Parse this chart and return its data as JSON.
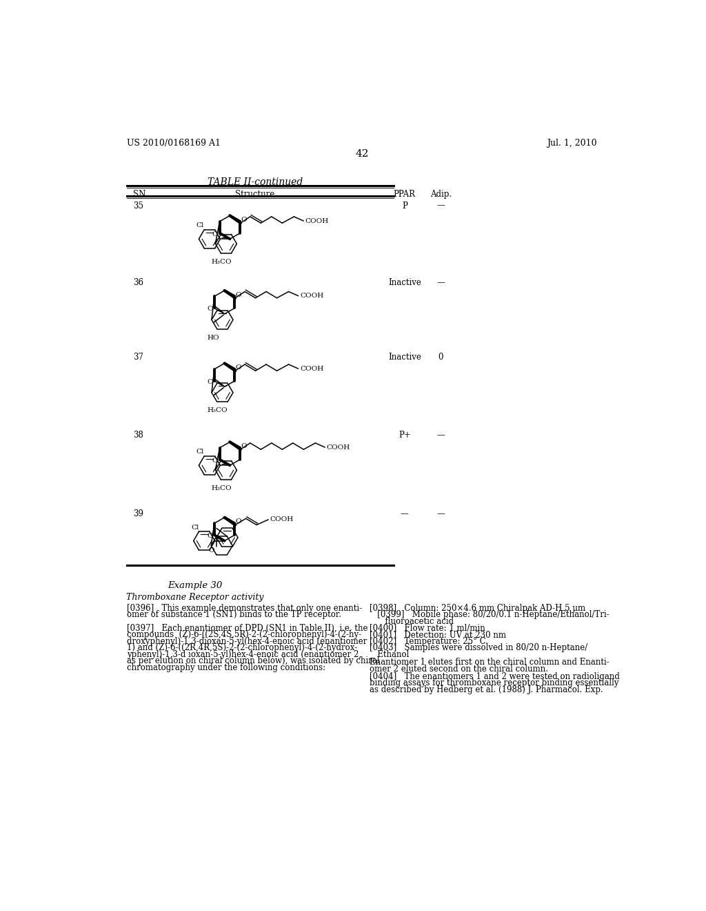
{
  "page_number": "42",
  "patent_number": "US 2010/0168169 A1",
  "patent_date": "Jul. 1, 2010",
  "table_title": "TABLE II-continued",
  "table_headers": [
    "SN",
    "Structure",
    "PPAR",
    "Adip."
  ],
  "rows": [
    {
      "sn": "35",
      "ppar": "P",
      "adip": "—"
    },
    {
      "sn": "36",
      "ppar": "Inactive",
      "adip": "—"
    },
    {
      "sn": "37",
      "ppar": "Inactive",
      "adip": "0"
    },
    {
      "sn": "38",
      "ppar": "P+",
      "adip": "—"
    },
    {
      "sn": "39",
      "ppar": "—",
      "adip": "—"
    }
  ],
  "example_title": "Example 30",
  "example_subtitle": "Thromboxane Receptor activity",
  "p396": "[0396]   This example demonstrates that only one enantiomer of substance 1 (SN1) binds to the TP receptor.",
  "p397_1": "[0397]   Each enantiomer of DPD (SN1 in Table II), i.e. the",
  "p397_2": "compounds  (Z)-6-((2S,4S,5R)-2-(2-chlorophenyl)-4-(2-hy-",
  "p397_3": "droxyphenyl)-1,3-dioxan-5-yl(hex-4-enoic acid (enantiomer",
  "p397_4": "1) and (Z)-6-((2R,4R,5S)-2-(2-chlorophenyl)-4-(2-hydrox-",
  "p397_5": "yphenyl)-1,3-d ioxan-5-yl)hex-4-enoic acid (enantiomer 2,",
  "p397_6": "as per elution on chiral column below), was isolated by chiral",
  "p397_7": "chromatography under the following conditions:",
  "p398": "[0398]   Column: 250×4.6 mm Chiralpak AD-H 5 μm",
  "p399_1": "   [0399]   Mobile phase: 80/20/0.1 n-Heptane/Ethanol/Tri-",
  "p399_2": "      fluoroacetic acid",
  "p400": "[0400]   Flow rate: 1 ml/min",
  "p401": "[0401]   Detection: UV at 230 nm",
  "p402": "[0402]   Temperature: 25° C.",
  "p403_1": "[0403]   Samples were dissolved in 80/20 n-Heptane/",
  "p403_2": "   Ethanol",
  "enantio1": "Enantiomer 1 elutes first on the chiral column and Enanti-",
  "enantio2": "omer 2 eluted second on the chiral column.",
  "p404_1": "[0404]   The enantiomers 1 and 2 were tested on radioligand",
  "p404_2": "binding assays for thromboxane receptor binding essentially",
  "p404_3": "as described by Hedberg et al. (1988) J. Pharmacol. Exp.",
  "bg_color": "#ffffff"
}
